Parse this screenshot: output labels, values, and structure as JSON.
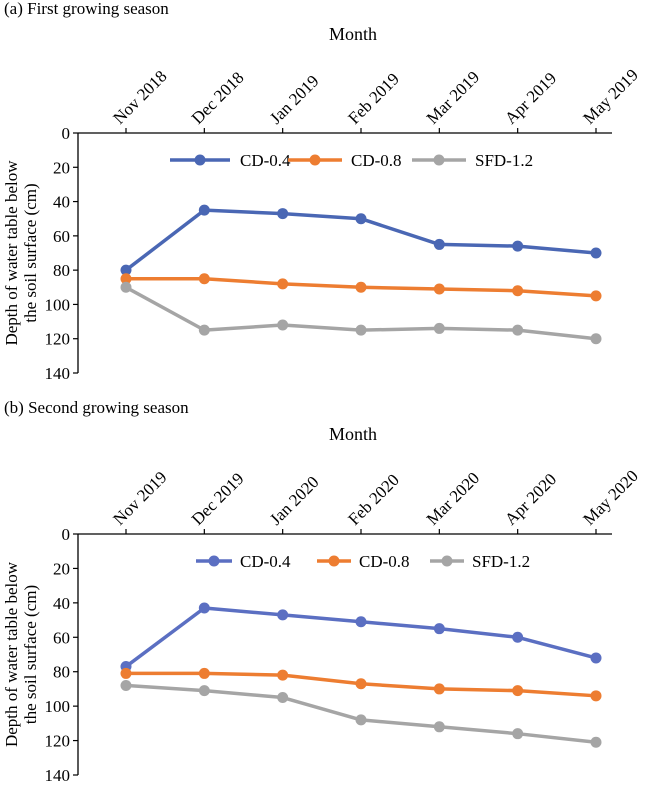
{
  "chart_data": [
    {
      "type": "line",
      "panel_label": "(a) First growing season",
      "xlabel": "Month",
      "ylabel_lines": [
        "Depth of water table below",
        "the soil surface (cm)"
      ],
      "categories": [
        "Nov 2018",
        "Dec 2018",
        "Jan 2019",
        "Feb 2019",
        "Mar 2019",
        "Apr 2019",
        "May 2019"
      ],
      "ylim": [
        0,
        140
      ],
      "y_inverted": true,
      "yticks": [
        0,
        20,
        40,
        60,
        80,
        100,
        120,
        140
      ],
      "legend_position": "top-center",
      "grid": false,
      "series": [
        {
          "name": "CD-0.4",
          "color": "#4a67b4",
          "values": [
            80,
            45,
            47,
            50,
            65,
            66,
            70
          ]
        },
        {
          "name": "CD-0.8",
          "color": "#ed7d31",
          "values": [
            85,
            85,
            88,
            90,
            91,
            92,
            95
          ]
        },
        {
          "name": "SFD-1.2",
          "color": "#a5a5a5",
          "values": [
            90,
            115,
            112,
            115,
            114,
            115,
            120
          ]
        }
      ]
    },
    {
      "type": "line",
      "panel_label": "(b) Second growing season",
      "xlabel": "Month",
      "ylabel_lines": [
        "Depth of water table below",
        "the soil surface (cm)"
      ],
      "categories": [
        "Nov 2019",
        "Dec 2019",
        "Jan 2020",
        "Feb 2020",
        "Mar 2020",
        "Apr 2020",
        "May 2020"
      ],
      "ylim": [
        0,
        140
      ],
      "y_inverted": true,
      "yticks": [
        0,
        20,
        40,
        60,
        80,
        100,
        120,
        140
      ],
      "legend_position": "top-center",
      "grid": false,
      "series": [
        {
          "name": "CD-0.4",
          "color": "#5b6fc2",
          "values": [
            77,
            43,
            47,
            51,
            55,
            60,
            72
          ]
        },
        {
          "name": "CD-0.8",
          "color": "#ed7d31",
          "values": [
            81,
            81,
            82,
            87,
            90,
            91,
            94
          ]
        },
        {
          "name": "SFD-1.2",
          "color": "#a5a5a5",
          "values": [
            88,
            91,
            95,
            108,
            112,
            116,
            121
          ]
        }
      ]
    }
  ]
}
